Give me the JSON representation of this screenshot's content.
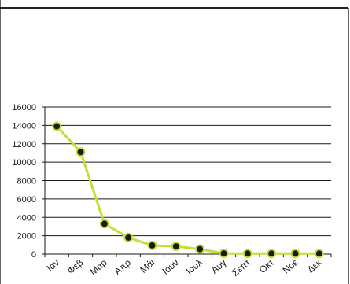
{
  "header": {
    "strip_text": ""
  },
  "chart_data": {
    "type": "line",
    "title": "",
    "xlabel": "",
    "ylabel": "",
    "categories": [
      "Ιαν",
      "Φεβ",
      "Μαρ",
      "Απρ",
      "Μάι",
      "Ιουν",
      "Ιουλ",
      "Αυγ",
      "Σεπτ",
      "Οκτ",
      "Νοε",
      "Δεκ"
    ],
    "series": [
      {
        "values": [
          13900,
          11100,
          3300,
          1800,
          950,
          850,
          550,
          80,
          60,
          60,
          60,
          60
        ]
      }
    ],
    "ylim": [
      0,
      16000
    ],
    "yticks": [
      "0",
      "2000",
      "4000",
      "6000",
      "8000",
      "10000",
      "12000",
      "14000",
      "16000"
    ],
    "grid": true,
    "legend": "none",
    "colors": {
      "line": "#c8dc32",
      "marker_fill": "#1a1a1a",
      "marker_edge": "#c8dc32",
      "grid": "#1a1a1a",
      "text": "#1a1a1a"
    }
  }
}
